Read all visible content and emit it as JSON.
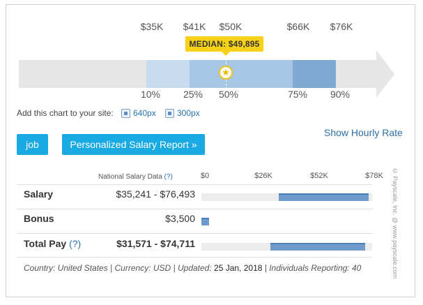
{
  "range": {
    "top_ticks": [
      "$35K",
      "$41K",
      "$50K",
      "$66K",
      "$76K"
    ],
    "bottom_ticks": [
      "10%",
      "25%",
      "50%",
      "75%",
      "90%"
    ],
    "median_label": "MEDIAN: $49,895"
  },
  "embed": {
    "text": "Add this chart to your site:",
    "link_640": "640px",
    "link_300": "300px"
  },
  "buttons": {
    "job": "job",
    "report": "Personalized Salary Report »"
  },
  "hourly_link": "Show Hourly Rate",
  "table": {
    "header": "National Salary Data",
    "help": "(?)",
    "axis": [
      "$0",
      "$26K",
      "$52K",
      "$78K"
    ],
    "rows": [
      {
        "label": "Salary",
        "value": "$35,241 - $76,493",
        "low": 35241,
        "high": 76493
      },
      {
        "label": "Bonus",
        "value": "$3,500",
        "low": 0,
        "high": 3500
      },
      {
        "label": "Total Pay",
        "help": "(?)",
        "value": "$31,571 - $74,711",
        "low": 31571,
        "high": 74711
      }
    ]
  },
  "footer": {
    "prefix": "Country: United States | Currency: USD | Updated: ",
    "date": "25 Jan, 2018",
    "suffix": " | Individuals Reporting: 40"
  },
  "copyright": "© Payscale, Inc. @ www.payscale.com"
}
